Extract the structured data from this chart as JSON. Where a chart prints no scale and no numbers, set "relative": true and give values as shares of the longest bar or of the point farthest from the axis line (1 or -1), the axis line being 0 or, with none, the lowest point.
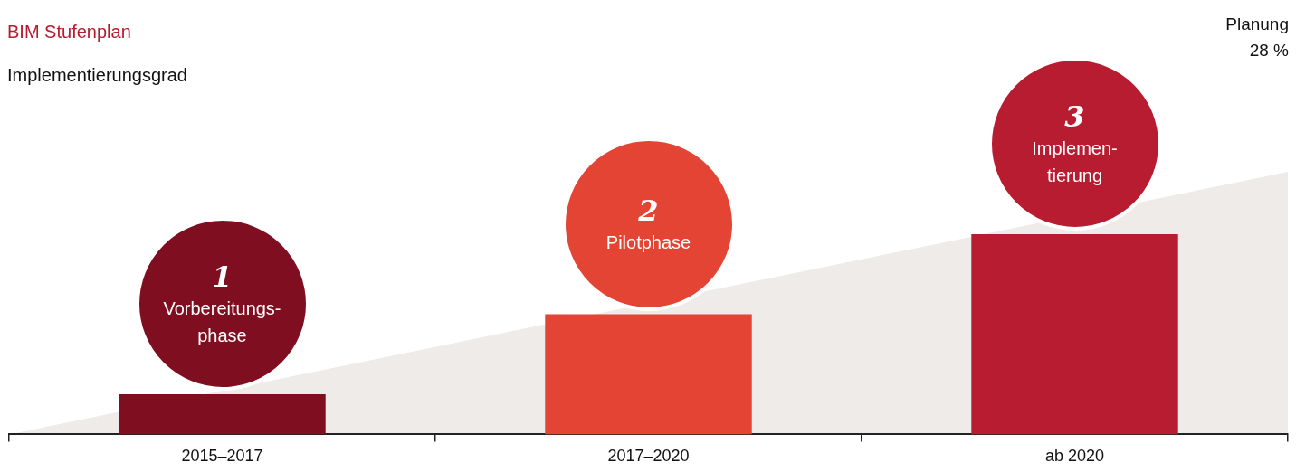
{
  "chart_data": {
    "type": "bar",
    "title": "BIM Stufenplan",
    "subtitle": "Implementierungsgrad",
    "relative": true,
    "categories": [
      "2015–2017",
      "2017–2020",
      "ab 2020"
    ],
    "values": [
      0.2,
      0.6,
      1
    ],
    "colors": [
      "#7f0e20",
      "#e44434",
      "#b71c30"
    ],
    "annotations": [
      "1",
      "Vorbereitungs-\nphase",
      "2",
      "Pilotphase",
      "3",
      "Implemen-\ntierung",
      "Planung\n28 %"
    ],
    "grid": false,
    "legend": false
  }
}
